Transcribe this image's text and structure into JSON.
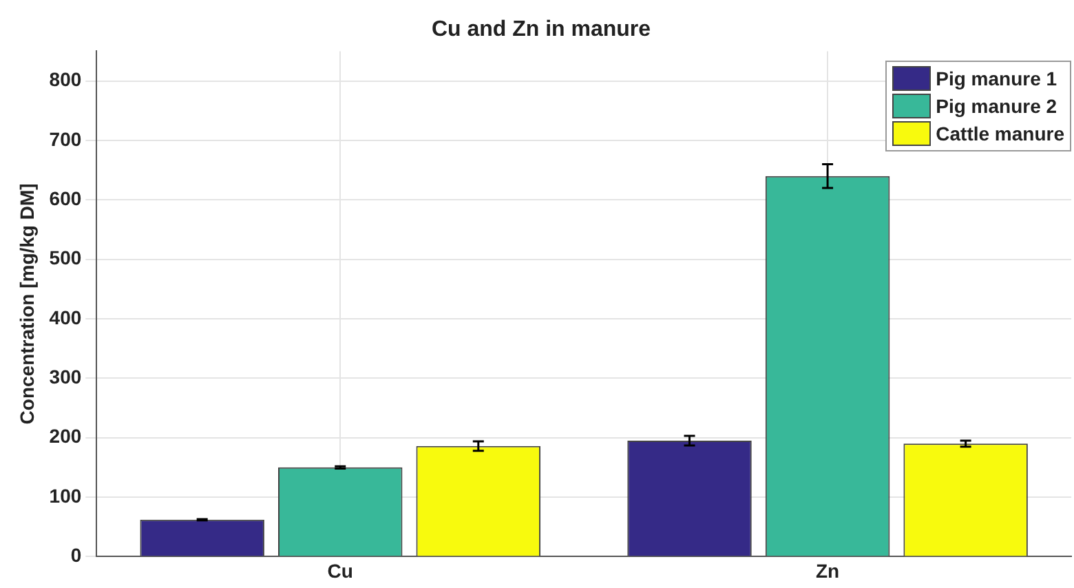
{
  "chart_data": {
    "type": "bar",
    "title": "Cu and Zn in manure",
    "ylabel": "Concentration [mg/kg DM]",
    "categories": [
      "Cu",
      "Zn"
    ],
    "series": [
      {
        "name": "Pig manure 1",
        "color": "#352a87",
        "values": [
          62,
          195
        ],
        "errors": [
          1,
          8
        ]
      },
      {
        "name": "Pig manure 2",
        "color": "#38b899",
        "values": [
          150,
          640
        ],
        "errors": [
          2,
          20
        ]
      },
      {
        "name": "Cattle manure",
        "color": "#f8fa0d",
        "values": [
          186,
          190
        ],
        "errors": [
          8,
          5
        ]
      }
    ],
    "ylim": [
      0,
      850
    ],
    "yticks": [
      0,
      100,
      200,
      300,
      400,
      500,
      600,
      700,
      800
    ],
    "grid": true,
    "legend": "top right"
  }
}
